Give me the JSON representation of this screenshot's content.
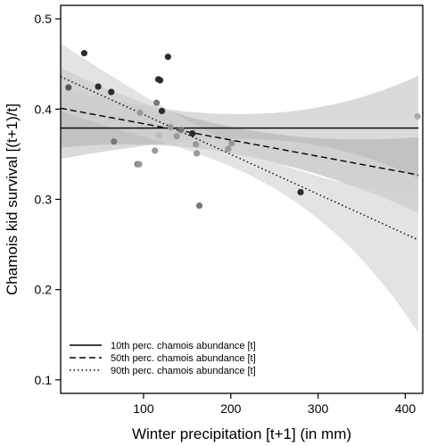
{
  "chart_data": {
    "type": "scatter",
    "xlabel": "Winter precipitation [t+1] (in mm)",
    "ylabel": "Chamois kid survival [(t+1)/t]",
    "xlim": [
      5,
      420
    ],
    "ylim": [
      0.085,
      0.515
    ],
    "x_ticks": [
      100,
      200,
      300,
      400
    ],
    "y_ticks": [
      0.1,
      0.2,
      0.3,
      0.4,
      0.5
    ],
    "grid": false,
    "legend_position": "bottom-left",
    "points": [
      {
        "x": 14,
        "y": 0.424,
        "color": "#555555"
      },
      {
        "x": 32,
        "y": 0.462,
        "color": "#2b2b2b"
      },
      {
        "x": 48,
        "y": 0.425,
        "color": "#2b2b2b"
      },
      {
        "x": 63,
        "y": 0.419,
        "color": "#2b2b2b"
      },
      {
        "x": 66,
        "y": 0.364,
        "color": "#777777"
      },
      {
        "x": 93,
        "y": 0.339,
        "color": "#777777"
      },
      {
        "x": 95,
        "y": 0.339,
        "color": "#999999"
      },
      {
        "x": 96,
        "y": 0.396,
        "color": "#999999"
      },
      {
        "x": 113,
        "y": 0.354,
        "color": "#999999"
      },
      {
        "x": 115,
        "y": 0.407,
        "color": "#777777"
      },
      {
        "x": 117,
        "y": 0.433,
        "color": "#2b2b2b"
      },
      {
        "x": 119,
        "y": 0.432,
        "color": "#2b2b2b"
      },
      {
        "x": 121,
        "y": 0.398,
        "color": "#2b2b2b"
      },
      {
        "x": 118,
        "y": 0.371,
        "color": "#bbbbbb"
      },
      {
        "x": 128,
        "y": 0.458,
        "color": "#2b2b2b"
      },
      {
        "x": 131,
        "y": 0.38,
        "color": "#999999"
      },
      {
        "x": 138,
        "y": 0.37,
        "color": "#999999"
      },
      {
        "x": 143,
        "y": 0.377,
        "color": "#777777"
      },
      {
        "x": 156,
        "y": 0.373,
        "color": "#2b2b2b"
      },
      {
        "x": 160,
        "y": 0.361,
        "color": "#999999"
      },
      {
        "x": 161,
        "y": 0.351,
        "color": "#999999"
      },
      {
        "x": 164,
        "y": 0.293,
        "color": "#777777"
      },
      {
        "x": 197,
        "y": 0.356,
        "color": "#999999"
      },
      {
        "x": 201,
        "y": 0.362,
        "color": "#999999"
      },
      {
        "x": 280,
        "y": 0.308,
        "color": "#2b2b2b"
      },
      {
        "x": 414,
        "y": 0.392,
        "color": "#aaaaaa"
      }
    ],
    "series": [
      {
        "name": "10th perc. chamois abundance [t]",
        "line_style": "solid",
        "x": [
          5,
          415
        ],
        "y": [
          0.379,
          0.379
        ],
        "ci_upper": [
          0.423,
          0.437
        ],
        "ci_lower": [
          0.345,
          0.323
        ],
        "band_color": "#c2c2c2",
        "band_opacity": 0.6
      },
      {
        "name": "50th perc. chamois abundance [t]",
        "line_style": "dashed",
        "x": [
          5,
          415
        ],
        "y": [
          0.401,
          0.327
        ],
        "ci_upper": [
          0.446,
          0.369
        ],
        "ci_lower": [
          0.357,
          0.285
        ],
        "band_color": "#b3b3b3",
        "band_opacity": 0.6
      },
      {
        "name": "90th perc. chamois abundance [t]",
        "line_style": "dotted",
        "x": [
          5,
          415
        ],
        "y": [
          0.436,
          0.255
        ],
        "ci_upper": [
          0.473,
          0.308
        ],
        "ci_lower": [
          0.398,
          0.152
        ],
        "band_color": "#d4d4d4",
        "band_opacity": 0.65
      }
    ]
  }
}
